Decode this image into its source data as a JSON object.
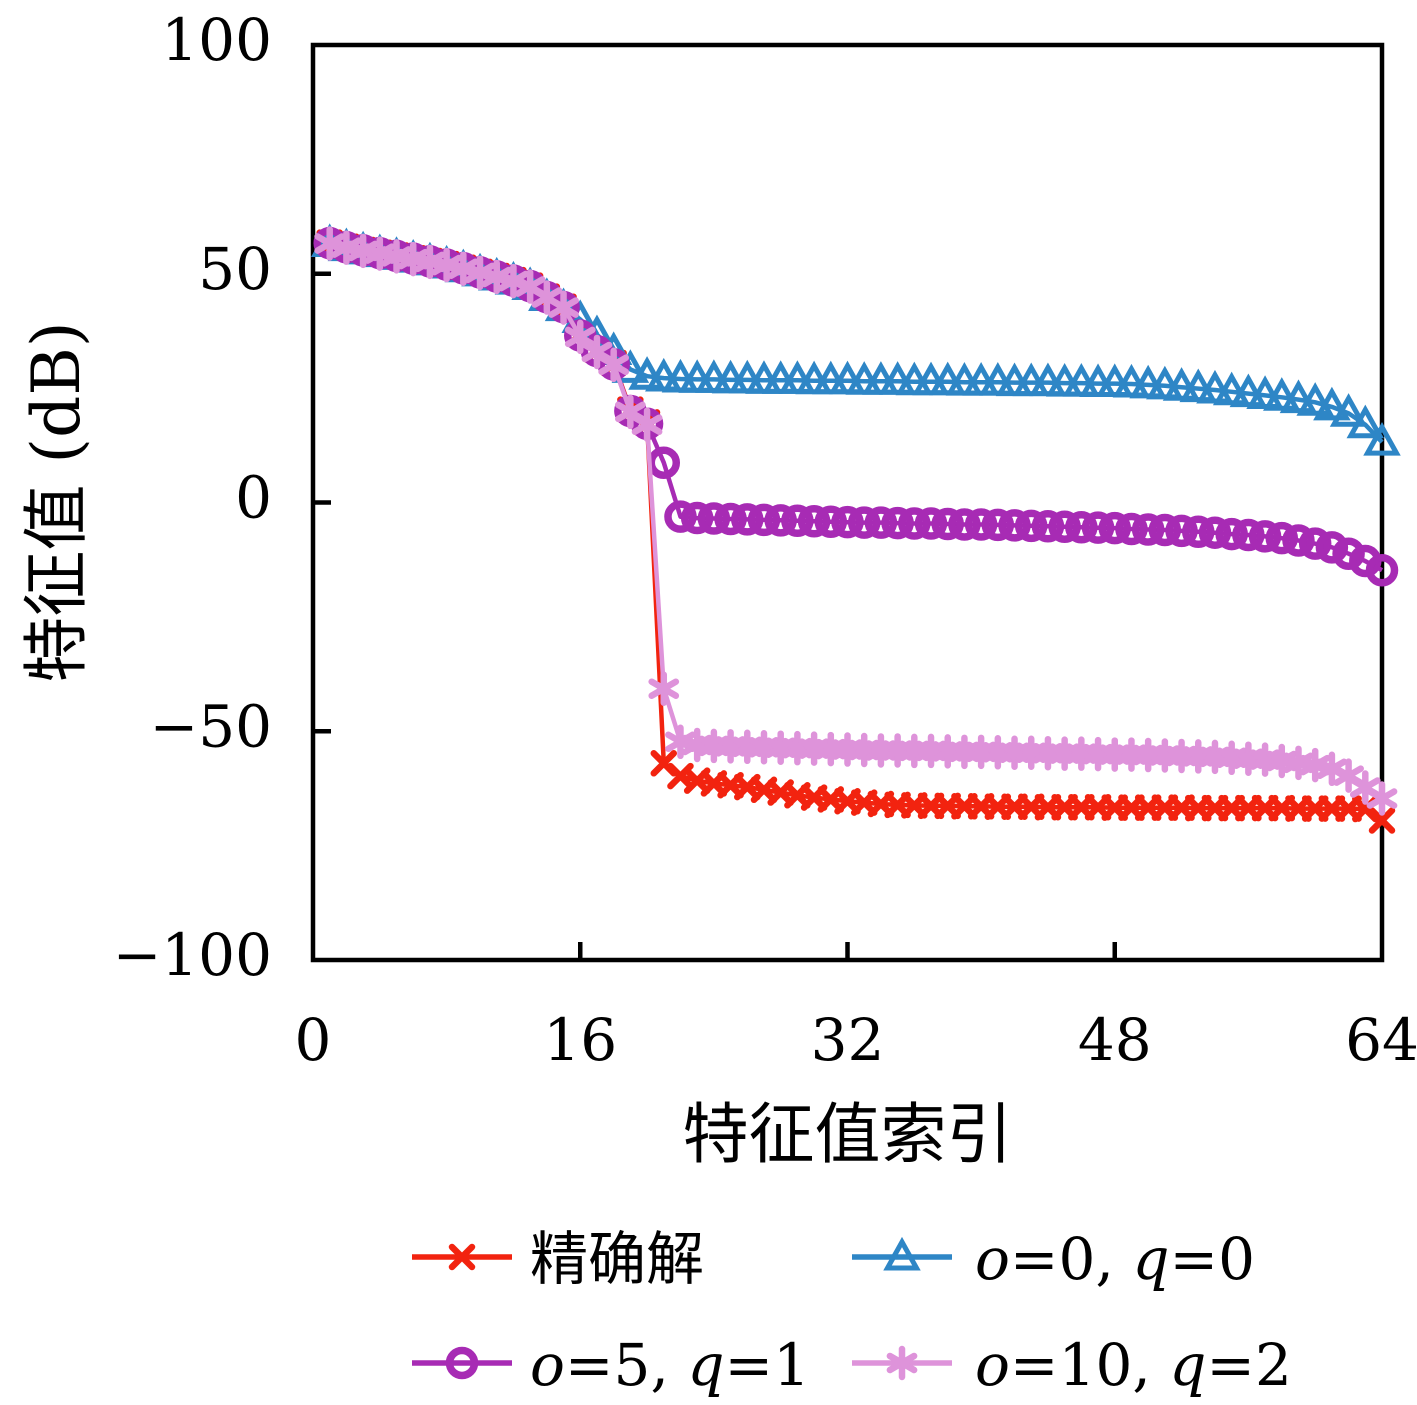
{
  "chart_data": {
    "type": "line",
    "title": "",
    "xlabel": "特征值索引",
    "ylabel": "特征值 (dB)",
    "xlim": [
      0,
      64
    ],
    "ylim": [
      -100,
      100
    ],
    "x_ticks": [
      "0",
      "16",
      "32",
      "48",
      "64"
    ],
    "x_tick_values": [
      0,
      16,
      32,
      48,
      64
    ],
    "y_ticks": [
      "100",
      "50",
      "0",
      "−50",
      "−100"
    ],
    "y_tick_values": [
      100,
      50,
      0,
      -50,
      -100
    ],
    "grid": false,
    "legend_position": "bottom",
    "x": [
      1,
      2,
      3,
      4,
      5,
      6,
      7,
      8,
      9,
      10,
      11,
      12,
      13,
      14,
      15,
      16,
      17,
      18,
      19,
      20,
      21,
      22,
      23,
      24,
      25,
      26,
      27,
      28,
      29,
      30,
      31,
      32,
      33,
      34,
      35,
      36,
      37,
      38,
      39,
      40,
      41,
      42,
      43,
      44,
      45,
      46,
      47,
      48,
      49,
      50,
      51,
      52,
      53,
      54,
      55,
      56,
      57,
      58,
      59,
      60,
      61,
      62,
      63,
      64
    ],
    "series": [
      {
        "name": "精确解",
        "color": "#f2230f",
        "marker": "x",
        "values": [
          56.8,
          55.9,
          55.2,
          54.6,
          54.0,
          53.4,
          52.8,
          52.1,
          51.3,
          50.4,
          49.5,
          48.6,
          47.4,
          45.0,
          42.8,
          36.8,
          33.4,
          30.5,
          20.3,
          17.5,
          -57.0,
          -59.8,
          -60.8,
          -61.4,
          -61.8,
          -62.2,
          -62.8,
          -63.4,
          -64.0,
          -64.5,
          -64.9,
          -65.3,
          -65.6,
          -65.9,
          -66.1,
          -66.2,
          -66.3,
          -66.3,
          -66.4,
          -66.4,
          -66.5,
          -66.5,
          -66.5,
          -66.6,
          -66.6,
          -66.6,
          -66.6,
          -66.7,
          -66.7,
          -66.7,
          -66.7,
          -66.7,
          -66.8,
          -66.8,
          -66.8,
          -66.8,
          -66.8,
          -66.8,
          -66.9,
          -66.9,
          -66.9,
          -66.9,
          -67.0,
          -69.5
        ]
      },
      {
        "name": "o=0, q=0",
        "color": "#2e86c6",
        "marker": "triangle",
        "values": [
          56.6,
          55.7,
          55.0,
          54.4,
          53.8,
          53.2,
          52.6,
          51.9,
          51.1,
          50.2,
          49.3,
          48.4,
          47.2,
          44.8,
          42.6,
          40.0,
          36.7,
          33.0,
          29.1,
          27.6,
          27.2,
          27.0,
          26.9,
          26.9,
          26.8,
          26.8,
          26.7,
          26.7,
          26.7,
          26.6,
          26.6,
          26.6,
          26.5,
          26.5,
          26.5,
          26.4,
          26.4,
          26.4,
          26.3,
          26.3,
          26.3,
          26.2,
          26.2,
          26.2,
          26.1,
          26.1,
          26.0,
          26.0,
          25.9,
          25.7,
          25.5,
          25.2,
          24.9,
          24.6,
          24.2,
          23.8,
          23.4,
          23.0,
          22.5,
          21.9,
          20.9,
          19.5,
          17.0,
          13.2
        ]
      },
      {
        "name": "o=5, q=1",
        "color": "#a72bb4",
        "marker": "circle",
        "values": [
          56.7,
          55.8,
          55.1,
          54.5,
          53.9,
          53.3,
          52.7,
          52.0,
          51.2,
          50.3,
          49.4,
          48.5,
          47.3,
          44.9,
          42.7,
          36.5,
          33.1,
          30.2,
          20.0,
          17.2,
          8.7,
          -3.1,
          -3.4,
          -3.5,
          -3.6,
          -3.7,
          -3.8,
          -3.9,
          -4.0,
          -4.1,
          -4.2,
          -4.3,
          -4.4,
          -4.4,
          -4.5,
          -4.6,
          -4.6,
          -4.7,
          -4.8,
          -4.8,
          -4.9,
          -5.0,
          -5.1,
          -5.2,
          -5.3,
          -5.4,
          -5.5,
          -5.6,
          -5.8,
          -5.9,
          -6.0,
          -6.2,
          -6.4,
          -6.6,
          -6.9,
          -7.1,
          -7.4,
          -7.8,
          -8.3,
          -9.0,
          -9.8,
          -11.2,
          -12.8,
          -14.8
        ]
      },
      {
        "name": "o=10, q=2",
        "color": "#de93da",
        "marker": "asterisk",
        "values": [
          56.6,
          55.7,
          55.0,
          54.4,
          53.8,
          53.2,
          52.6,
          51.9,
          51.1,
          50.2,
          49.3,
          48.4,
          47.2,
          44.8,
          42.6,
          36.2,
          32.9,
          30.1,
          19.8,
          17.0,
          -40.7,
          -52.3,
          -53.0,
          -53.2,
          -53.3,
          -53.4,
          -53.5,
          -53.6,
          -53.7,
          -53.8,
          -53.9,
          -54.0,
          -54.1,
          -54.2,
          -54.2,
          -54.3,
          -54.3,
          -54.4,
          -54.5,
          -54.5,
          -54.6,
          -54.7,
          -54.7,
          -54.8,
          -54.9,
          -54.9,
          -55.0,
          -55.1,
          -55.1,
          -55.2,
          -55.3,
          -55.4,
          -55.5,
          -55.6,
          -55.8,
          -56.0,
          -56.2,
          -56.5,
          -56.9,
          -57.4,
          -58.2,
          -59.7,
          -62.3,
          -64.7
        ]
      }
    ],
    "legend": {
      "rows": [
        [
          {
            "series_index": 0,
            "label": "精确解"
          },
          {
            "series_index": 1,
            "label": "o=0, q=0"
          }
        ],
        [
          {
            "series_index": 2,
            "label": "o=5, q=1"
          },
          {
            "series_index": 3,
            "label": "o=10, q=2"
          }
        ]
      ]
    }
  }
}
